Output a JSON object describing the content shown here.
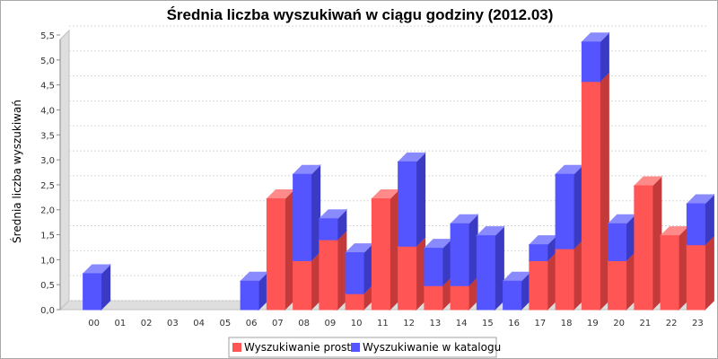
{
  "chart_data": {
    "type": "bar",
    "stacked": true,
    "three_d": true,
    "title": "Średnia liczba wyszukiwań w ciągu godziny (2012.03)",
    "xlabel": "",
    "ylabel": "Średnia liczba wyszukiwań",
    "ylim": [
      0,
      5.5
    ],
    "yticks": [
      "0,0",
      "0,5",
      "1,0",
      "1,5",
      "2,0",
      "2,5",
      "3,0",
      "3,5",
      "4,0",
      "4,5",
      "5,0",
      "5,5"
    ],
    "grid": true,
    "legend_position": "bottom",
    "categories": [
      "00",
      "01",
      "02",
      "03",
      "04",
      "05",
      "06",
      "07",
      "08",
      "09",
      "10",
      "11",
      "12",
      "13",
      "14",
      "15",
      "16",
      "17",
      "18",
      "19",
      "20",
      "21",
      "22",
      "23"
    ],
    "series": [
      {
        "name": "Wyszukiwanie proste",
        "color": "#ff5555",
        "side_color": "#c43a3a",
        "top_color": "#ff8a8a",
        "values": [
          0,
          0,
          0,
          0,
          0,
          0,
          0,
          2.22,
          0.98,
          1.4,
          0.32,
          2.22,
          1.27,
          0.48,
          0.48,
          0,
          0,
          0.98,
          1.22,
          4.57,
          0.98,
          2.48,
          1.48,
          1.3
        ]
      },
      {
        "name": "Wyszukiwanie w katalogu",
        "color": "#5555ff",
        "side_color": "#3a3ac4",
        "top_color": "#8a8aff",
        "values": [
          0.72,
          0,
          0,
          0,
          0,
          0,
          0.57,
          0,
          1.73,
          0.42,
          0.82,
          0,
          1.69,
          0.75,
          1.24,
          1.48,
          0.57,
          0.32,
          1.49,
          0.79,
          0.74,
          0,
          0,
          0.82
        ]
      }
    ]
  }
}
